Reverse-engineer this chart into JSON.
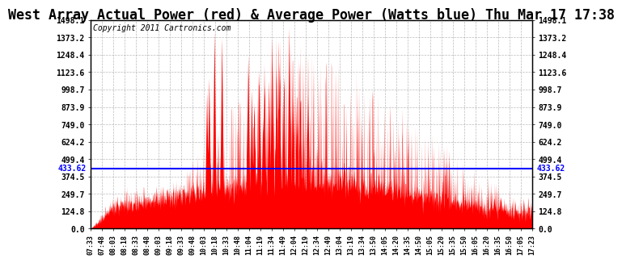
{
  "title": "West Array Actual Power (red) & Average Power (Watts blue) Thu Mar 17 17:38",
  "copyright": "Copyright 2011 Cartronics.com",
  "avg_power": 433.62,
  "ymax": 1498.1,
  "ymin": 0.0,
  "yticks": [
    0.0,
    124.8,
    249.7,
    374.5,
    499.4,
    624.2,
    749.0,
    873.9,
    998.7,
    1123.6,
    1248.4,
    1373.2,
    1498.1
  ],
  "ytick_labels": [
    "0.0",
    "124.8",
    "249.7",
    "374.5",
    "499.4",
    "624.2",
    "749.0",
    "873.9",
    "998.7",
    "1123.6",
    "1248.4",
    "1373.2",
    "1498.1"
  ],
  "xtick_labels": [
    "07:33",
    "07:48",
    "08:03",
    "08:18",
    "08:33",
    "08:48",
    "09:03",
    "09:18",
    "09:33",
    "09:48",
    "10:03",
    "10:18",
    "10:33",
    "10:48",
    "11:04",
    "11:19",
    "11:34",
    "11:49",
    "12:04",
    "12:19",
    "12:34",
    "12:49",
    "13:04",
    "13:19",
    "13:34",
    "13:50",
    "14:05",
    "14:20",
    "14:35",
    "14:50",
    "15:05",
    "15:20",
    "15:35",
    "15:50",
    "16:05",
    "16:20",
    "16:35",
    "16:50",
    "17:05",
    "17:23"
  ],
  "background_color": "#ffffff",
  "fill_color": "#ff0000",
  "line_color": "#0000ff",
  "grid_color": "#aaaaaa",
  "title_fontsize": 12,
  "copyright_fontsize": 7
}
